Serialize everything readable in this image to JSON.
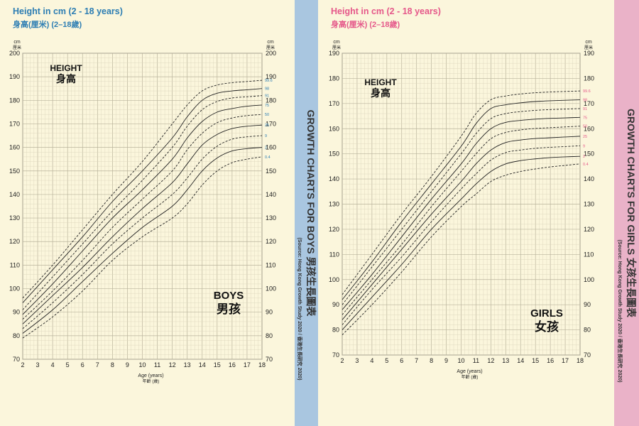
{
  "colors": {
    "page_bg": "#fbf6dc",
    "plot_bg": "#fbf6dc",
    "grid_minor": "#dcd6bd",
    "grid_major": "#b9b39b",
    "boys_accent": "#2c7db3",
    "girls_accent": "#e5588a",
    "boys_strip": "#a9c6e0",
    "girls_strip": "#eab2c8",
    "curve": "#222222"
  },
  "boys": {
    "title_en": "Height in cm (2 - 18 years)",
    "title_zh": "身高(厘米) (2–18歲)",
    "strip_label": "GROWTH CHARTS FOR BOYS 男孩生長圖表",
    "strip_source": "(Source: Hong Kong Growth Study 2020 / 香港生長研究 2020)",
    "label_en": "BOYS",
    "label_zh": "男孩",
    "height_en": "HEIGHT",
    "height_zh": "身高",
    "unit_en": "cm",
    "unit_zh": "厘米",
    "xlabel_en": "Age (years)",
    "xlabel_zh": "年齡 (歲)"
  },
  "girls": {
    "title_en": "Height in cm (2 - 18 years)",
    "title_zh": "身高(厘米) (2–18歲)",
    "strip_label": "GROWTH CHARTS FOR GIRLS 女孩生長圖表",
    "strip_source": "(Source: Hong Kong Growth Study 2020 / 香港生長研究 2020)",
    "label_en": "GIRLS",
    "label_zh": "女孩",
    "height_en": "HEIGHT",
    "height_zh": "身高",
    "unit_en": "cm",
    "unit_zh": "厘米",
    "xlabel_en": "Age (years)",
    "xlabel_zh": "年齡 (歲)"
  },
  "chart_data": [
    {
      "type": "line",
      "title": "Height in cm (2 - 18 years)",
      "xlabel": "Age (years)",
      "ylabel": "cm",
      "xlim": [
        2,
        18
      ],
      "ylim": [
        70,
        200
      ],
      "x_ticks": [
        2,
        3,
        4,
        5,
        6,
        7,
        8,
        9,
        10,
        11,
        12,
        13,
        14,
        15,
        16,
        17,
        18
      ],
      "y_ticks": [
        70,
        80,
        90,
        100,
        110,
        120,
        130,
        140,
        150,
        160,
        170,
        180,
        190,
        200
      ],
      "grid": true,
      "x": [
        2,
        4,
        6,
        8,
        10,
        12,
        13,
        14,
        15,
        16,
        17,
        18
      ],
      "series": [
        {
          "name": "99.6",
          "dashed": true,
          "values": [
            96,
            110,
            125,
            140,
            154,
            170,
            178,
            184,
            186.5,
            187.5,
            188,
            188.5
          ]
        },
        {
          "name": "98",
          "dashed": false,
          "values": [
            94,
            108,
            122,
            137,
            150,
            164,
            173,
            180,
            183,
            184,
            184.5,
            185
          ]
        },
        {
          "name": "91",
          "dashed": true,
          "values": [
            91,
            105,
            119,
            133,
            146,
            160,
            169,
            176,
            179.5,
            181,
            181.5,
            182
          ]
        },
        {
          "name": "75",
          "dashed": false,
          "values": [
            89,
            102,
            116,
            130,
            142,
            155,
            164,
            171,
            175,
            176.5,
            177.5,
            178
          ]
        },
        {
          "name": "50",
          "dashed": true,
          "values": [
            87,
            99,
            112,
            126,
            138,
            150,
            159,
            166,
            170.5,
            172.5,
            173.5,
            174
          ]
        },
        {
          "name": "25",
          "dashed": false,
          "values": [
            85,
            97,
            109,
            122,
            134,
            145,
            153,
            161,
            165.5,
            168,
            169,
            169.5
          ]
        },
        {
          "name": "9",
          "dashed": true,
          "values": [
            83,
            94,
            106,
            119,
            130,
            140,
            147,
            155,
            160.5,
            163.5,
            164.5,
            165
          ]
        },
        {
          "name": "2",
          "dashed": false,
          "values": [
            81,
            91,
            103,
            115,
            126,
            135,
            142,
            150,
            155.5,
            158.5,
            159.5,
            160
          ]
        },
        {
          "name": "0.4",
          "dashed": true,
          "values": [
            79,
            88,
            99,
            112,
            122,
            130,
            136,
            144,
            150,
            153.5,
            155,
            156
          ]
        }
      ]
    },
    {
      "type": "line",
      "title": "Height in cm (2 - 18 years)",
      "xlabel": "Age (years)",
      "ylabel": "cm",
      "xlim": [
        2,
        18
      ],
      "ylim": [
        70,
        190
      ],
      "x_ticks": [
        2,
        3,
        4,
        5,
        6,
        7,
        8,
        9,
        10,
        11,
        12,
        13,
        14,
        15,
        16,
        17,
        18
      ],
      "y_ticks": [
        70,
        80,
        90,
        100,
        110,
        120,
        130,
        140,
        150,
        160,
        170,
        180,
        190
      ],
      "grid": true,
      "x": [
        2,
        4,
        6,
        8,
        10,
        11,
        12,
        13,
        14,
        15,
        16,
        17,
        18
      ],
      "series": [
        {
          "name": "99.6",
          "dashed": true,
          "values": [
            94,
            110,
            126,
            141,
            157,
            166,
            171.5,
            173,
            173.8,
            174.3,
            174.6,
            174.8,
            175
          ]
        },
        {
          "name": "98",
          "dashed": false,
          "values": [
            92,
            107,
            123,
            138,
            153,
            162,
            168,
            169.5,
            170.3,
            170.8,
            171.1,
            171.3,
            171.5
          ]
        },
        {
          "name": "91",
          "dashed": true,
          "values": [
            90,
            105,
            120,
            135,
            150,
            158,
            164,
            166,
            166.8,
            167.3,
            167.6,
            167.8,
            168
          ]
        },
        {
          "name": "75",
          "dashed": false,
          "values": [
            88,
            102,
            117,
            132,
            146,
            154,
            160,
            162.5,
            163.3,
            163.8,
            164.1,
            164.3,
            164.5
          ]
        },
        {
          "name": "50",
          "dashed": true,
          "values": [
            86,
            100,
            114,
            129,
            143,
            150,
            156,
            158.5,
            159.5,
            160.1,
            160.4,
            160.7,
            161
          ]
        },
        {
          "name": "25",
          "dashed": false,
          "values": [
            84,
            98,
            112,
            126,
            139,
            146,
            151.5,
            154.5,
            155.5,
            156.1,
            156.4,
            156.7,
            157
          ]
        },
        {
          "name": "9",
          "dashed": true,
          "values": [
            82,
            96,
            109,
            123,
            136,
            142,
            147.5,
            150.5,
            151.5,
            152.2,
            152.6,
            152.9,
            153.2
          ]
        },
        {
          "name": "2",
          "dashed": false,
          "values": [
            80,
            93,
            106,
            120,
            132,
            138,
            143,
            146,
            147.3,
            148,
            148.5,
            148.8,
            149
          ]
        },
        {
          "name": "0.4",
          "dashed": true,
          "values": [
            78,
            90,
            103,
            117,
            129,
            134,
            139,
            141.5,
            143,
            144,
            144.8,
            145.4,
            146
          ]
        }
      ]
    }
  ]
}
